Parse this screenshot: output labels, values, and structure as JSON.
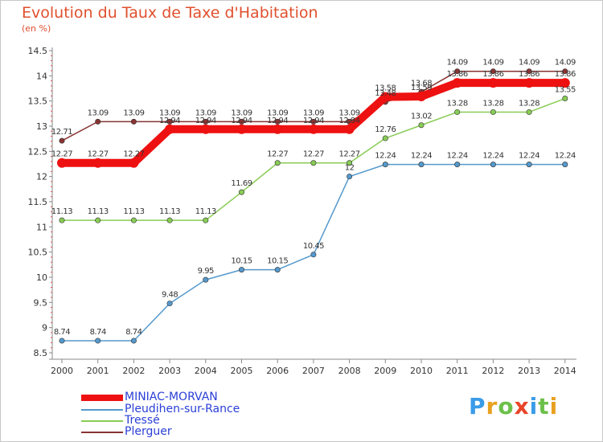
{
  "header": {
    "title": "Evolution du Taux de Taxe d'Habitation",
    "unit": "(en %)"
  },
  "logo": {
    "text": "Proxiti",
    "letter_colors": [
      "#3a9be8",
      "#e8a020",
      "#6cc04a",
      "#e8452a",
      "#3a9be8",
      "#6cc04a",
      "#e8a020"
    ]
  },
  "chart_data": {
    "type": "line",
    "x": [
      2000,
      2001,
      2002,
      2003,
      2004,
      2005,
      2006,
      2007,
      2008,
      2009,
      2010,
      2011,
      2012,
      2013,
      2014
    ],
    "ylim": [
      8.5,
      14.5
    ],
    "yticks": [
      "8.5",
      "9",
      "9.5",
      "10",
      "10.5",
      "11",
      "11.5",
      "12",
      "12.5",
      "13",
      "13.5",
      "14",
      "14.5"
    ],
    "grid": false,
    "legend_position": "bottom-left",
    "series": [
      {
        "name": "MINIAC-MORVAN",
        "color": "#ee1111",
        "values": [
          12.27,
          12.27,
          12.27,
          12.94,
          12.94,
          12.94,
          12.94,
          12.94,
          12.94,
          13.58,
          13.59,
          13.86,
          13.86,
          13.86,
          13.86
        ],
        "labels": [
          "12.27",
          "12.27",
          "12.27",
          "12.94",
          "12.94",
          "12.94",
          "12.94",
          "12.94",
          "12.94",
          "13.58",
          "13.59",
          "13.86",
          "13.86",
          "13.86",
          "13.86"
        ]
      },
      {
        "name": "Pleudihen-sur-Rance",
        "color": "#5599cc",
        "values": [
          8.74,
          8.74,
          8.74,
          9.48,
          9.95,
          10.15,
          10.15,
          10.45,
          12,
          12.24,
          12.24,
          12.24,
          12.24,
          12.24,
          12.24
        ],
        "labels": [
          "8.74",
          "8.74",
          "8.74",
          "9.48",
          "9.95",
          "10.15",
          "10.15",
          "10.45",
          "12",
          "12.24",
          "12.24",
          "12.24",
          "12.24",
          "12.24",
          "12.24"
        ]
      },
      {
        "name": "Tressé",
        "color": "#88cc55",
        "values": [
          11.13,
          11.13,
          11.13,
          11.13,
          11.13,
          11.69,
          12.27,
          12.27,
          12.27,
          12.76,
          13.02,
          13.28,
          13.28,
          13.28,
          13.55
        ],
        "labels": [
          "11.13",
          "11.13",
          "11.13",
          "11.13",
          "11.13",
          "11.69",
          "12.27",
          "12.27",
          "12.27",
          "12.76",
          "13.02",
          "13.28",
          "13.28",
          "13.28",
          "13.55"
        ]
      },
      {
        "name": "Plerguer",
        "color": "#883333",
        "values": [
          12.71,
          13.09,
          13.09,
          13.09,
          13.09,
          13.09,
          13.09,
          13.09,
          13.09,
          13.48,
          13.68,
          14.09,
          14.09,
          14.09,
          14.09
        ],
        "labels": [
          "12.71",
          "13.09",
          "13.09",
          "13.09",
          "13.09",
          "13.09",
          "13.09",
          "13.09",
          "13.09",
          "13.48",
          "13.68",
          "14.09",
          "14.09",
          "14.09",
          "14.09"
        ]
      }
    ]
  }
}
